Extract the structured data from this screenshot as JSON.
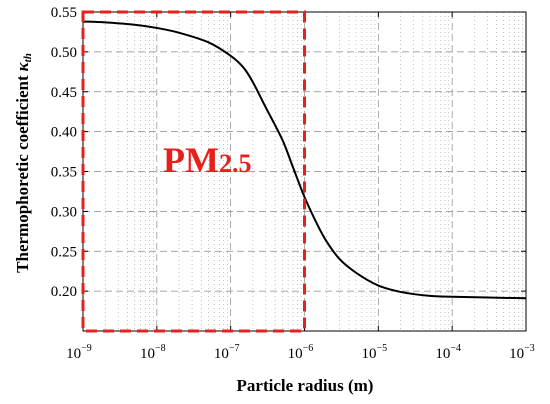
{
  "chart_data": {
    "type": "line",
    "title": "",
    "xlabel": "Particle radius (m)",
    "ylabel": "Thermophoretic coefficient",
    "ylabel_symbol": "κ",
    "ylabel_subscript": "th",
    "x_scale": "log",
    "xlim": [
      1e-09,
      0.001
    ],
    "ylim": [
      0.15,
      0.55
    ],
    "grid": true,
    "x_ticks": [
      {
        "value": 1e-09,
        "base": "10",
        "exp": "−9"
      },
      {
        "value": 1e-08,
        "base": "10",
        "exp": "−8"
      },
      {
        "value": 1e-07,
        "base": "10",
        "exp": "−7"
      },
      {
        "value": 1e-06,
        "base": "10",
        "exp": "−6"
      },
      {
        "value": 1e-05,
        "base": "10",
        "exp": "−5"
      },
      {
        "value": 0.0001,
        "base": "10",
        "exp": "−4"
      },
      {
        "value": 0.001,
        "base": "10",
        "exp": "−3"
      }
    ],
    "y_ticks": [
      {
        "value": 0.2,
        "label": "0.20"
      },
      {
        "value": 0.25,
        "label": "0.25"
      },
      {
        "value": 0.3,
        "label": "0.30"
      },
      {
        "value": 0.35,
        "label": "0.35"
      },
      {
        "value": 0.4,
        "label": "0.40"
      },
      {
        "value": 0.45,
        "label": "0.45"
      },
      {
        "value": 0.5,
        "label": "0.50"
      },
      {
        "value": 0.55,
        "label": "0.55"
      }
    ],
    "series": [
      {
        "color": "#000000",
        "points": [
          {
            "x": 1e-09,
            "y": 0.538
          },
          {
            "x": 2e-09,
            "y": 0.537
          },
          {
            "x": 5e-09,
            "y": 0.534
          },
          {
            "x": 1e-08,
            "y": 0.53
          },
          {
            "x": 2e-08,
            "y": 0.524
          },
          {
            "x": 5e-08,
            "y": 0.512
          },
          {
            "x": 1e-07,
            "y": 0.495
          },
          {
            "x": 1.5e-07,
            "y": 0.48
          },
          {
            "x": 2e-07,
            "y": 0.462
          },
          {
            "x": 3e-07,
            "y": 0.43
          },
          {
            "x": 5e-07,
            "y": 0.39
          },
          {
            "x": 7e-07,
            "y": 0.355
          },
          {
            "x": 1e-06,
            "y": 0.318
          },
          {
            "x": 1.5e-06,
            "y": 0.283
          },
          {
            "x": 2e-06,
            "y": 0.262
          },
          {
            "x": 3e-06,
            "y": 0.24
          },
          {
            "x": 5e-06,
            "y": 0.223
          },
          {
            "x": 1e-05,
            "y": 0.207
          },
          {
            "x": 2e-05,
            "y": 0.199
          },
          {
            "x": 5e-05,
            "y": 0.194
          },
          {
            "x": 0.0001,
            "y": 0.193
          },
          {
            "x": 0.001,
            "y": 0.191
          }
        ]
      }
    ],
    "annotation": {
      "label_main": "PM",
      "label_sub": "2.5",
      "color": "#e8201c",
      "region_x": [
        1e-09,
        1e-06
      ]
    }
  }
}
